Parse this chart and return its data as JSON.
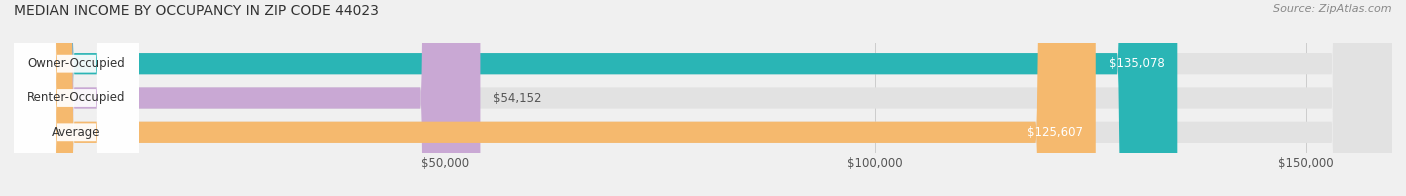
{
  "title": "MEDIAN INCOME BY OCCUPANCY IN ZIP CODE 44023",
  "source": "Source: ZipAtlas.com",
  "categories": [
    "Owner-Occupied",
    "Renter-Occupied",
    "Average"
  ],
  "values": [
    135078,
    54152,
    125607
  ],
  "bar_colors": [
    "#2ab5b5",
    "#c9a8d4",
    "#f5b96e"
  ],
  "value_labels": [
    "$135,078",
    "$54,152",
    "$125,607"
  ],
  "background_color": "#f0f0f0",
  "bar_bg_color": "#e2e2e2",
  "xlim": [
    0,
    160000
  ],
  "xticks": [
    50000,
    100000,
    150000
  ],
  "xticklabels": [
    "$50,000",
    "$100,000",
    "$150,000"
  ],
  "bar_height": 0.62,
  "figsize": [
    14.06,
    1.96
  ],
  "dpi": 100
}
